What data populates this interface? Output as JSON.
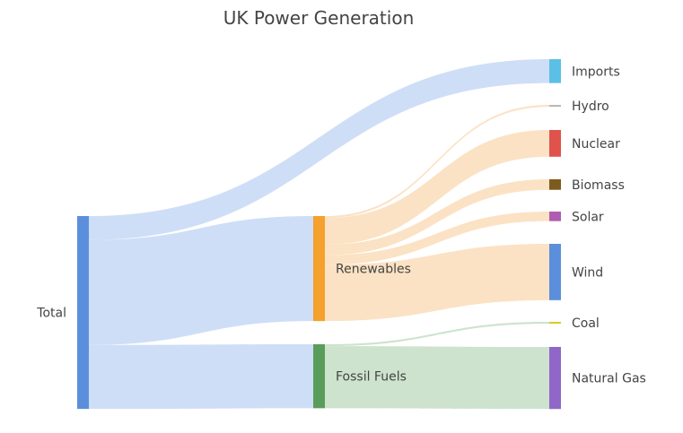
{
  "chart_data": {
    "type": "sankey",
    "title": "UK Power Generation",
    "nodes": [
      {
        "id": "total",
        "label": "Total",
        "color": "#5b8fdb"
      },
      {
        "id": "imports",
        "label": "Imports",
        "color": "#5bbfe6"
      },
      {
        "id": "renewables",
        "label": "Renewables",
        "color": "#f5a12d"
      },
      {
        "id": "fossil",
        "label": "Fossil Fuels",
        "color": "#5a9d5a"
      },
      {
        "id": "hydro",
        "label": "Hydro",
        "color": "#b9b9b9"
      },
      {
        "id": "nuclear",
        "label": "Nuclear",
        "color": "#e0534d"
      },
      {
        "id": "biomass",
        "label": "Biomass",
        "color": "#7d5a1e"
      },
      {
        "id": "solar",
        "label": "Solar",
        "color": "#b05cb0"
      },
      {
        "id": "wind",
        "label": "Wind",
        "color": "#5b8fdb"
      },
      {
        "id": "coal",
        "label": "Coal",
        "color": "#d8cc2a"
      },
      {
        "id": "natural_gas",
        "label": "Natural Gas",
        "color": "#9166c9"
      }
    ],
    "links": [
      {
        "source": "total",
        "target": "imports",
        "value": 25
      },
      {
        "source": "total",
        "target": "renewables",
        "value": 110
      },
      {
        "source": "total",
        "target": "fossil",
        "value": 67
      },
      {
        "source": "renewables",
        "target": "hydro",
        "value": 2
      },
      {
        "source": "renewables",
        "target": "nuclear",
        "value": 28
      },
      {
        "source": "renewables",
        "target": "biomass",
        "value": 11
      },
      {
        "source": "renewables",
        "target": "solar",
        "value": 10
      },
      {
        "source": "renewables",
        "target": "wind",
        "value": 59
      },
      {
        "source": "fossil",
        "target": "coal",
        "value": 2
      },
      {
        "source": "fossil",
        "target": "natural_gas",
        "value": 65
      }
    ],
    "link_colors": {
      "total": "#cfdef7",
      "renewables": "#fbe2c4",
      "fossil": "#cde3cd"
    }
  }
}
